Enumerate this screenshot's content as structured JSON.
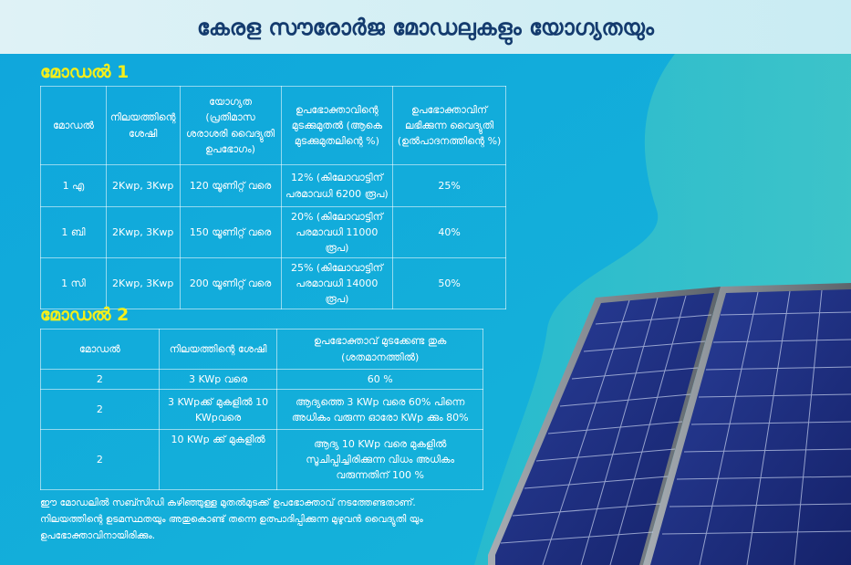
{
  "title": "കേരള സൗരോർജ മോഡലുകളും യോഗ്യതയും",
  "model1": {
    "heading": "മോഡൽ 1",
    "columns": [
      "മോഡൽ",
      "നിലയത്തിന്റെ ശേഷി",
      "യോഗ്യത (പ്രതിമാസ ശരാശരി വൈദ്യുതി ഉപഭോഗം)",
      "ഉപഭോക്താവിന്റെ മുടക്കുമുതൽ (ആകെ മുടക്കുമുതലിന്റെ %)",
      "ഉപഭോക്താവിന് ലഭിക്കുന്ന വൈദ്യുതി (ഉൽപാദനത്തിന്റെ %)"
    ],
    "rows": [
      [
        "1 എ",
        "2Kwp, 3Kwp",
        "120 യൂണിറ്റ് വരെ",
        "12% (കിലോവാട്ടിന് പരമാവധി 6200 രൂപ)",
        "25%"
      ],
      [
        "1 ബി",
        "2Kwp, 3Kwp",
        "150 യൂണിറ്റ് വരെ",
        "20% (കിലോവാട്ടിന് പരമാവധി 11000 രൂപ)",
        "40%"
      ],
      [
        "1 സി",
        "2Kwp, 3Kwp",
        "200 യൂണിറ്റ് വരെ",
        "25% (കിലോവാട്ടിന് പരമാവധി 14000 രൂപ)",
        "50%"
      ]
    ]
  },
  "model2": {
    "heading": "മോഡൽ 2",
    "columns": [
      "മോഡൽ",
      "നിലയത്തിന്റെ ശേഷി",
      "ഉപഭോക്താവ് മുടക്കേണ്ട തുക (ശതമാനത്തിൽ)"
    ],
    "rows": [
      [
        "2",
        "3 KWp വരെ",
        "60 %"
      ],
      [
        "2",
        "3 KWpക്ക് മുകളിൽ 10 KWpവരെ",
        "ആദ്യത്തെ 3 KWp വരെ 60% പിന്നെ അധികം വരുന്ന ഓരോ KWp ക്കും 80%"
      ],
      [
        "2",
        "10 KWp ക്ക് മുകളിൽ",
        "ആദ്യ 10 KWp വരെ മുകളിൽ സൂചിപ്പിച്ചിരിക്കുന്ന വിധം അധികം വരുന്നതിന് 100 %"
      ]
    ]
  },
  "note": "ഈ മോഡലിൽ സബ്സിഡി കഴിഞ്ഞുള്ള മുതൽമുടക്ക് ഉപഭോക്താവ് നടത്തേണ്ടതാണ്. നിലയത്തിന്റെ ഉടമസ്ഥതയും അതുകൊണ്ട് തന്നെ ഉത്പാദിപ്പിക്കുന്ന മുഴുവൻ വൈദ്യുതി യും ഉപഭോക്താവിനായിരിക്കും.",
  "colors": {
    "background": "#12aede",
    "header_bg": "#dff2f6",
    "title_text": "#143b6e",
    "section_heading": "#f5ef1a",
    "panel_cell": "#1c2d7a"
  }
}
